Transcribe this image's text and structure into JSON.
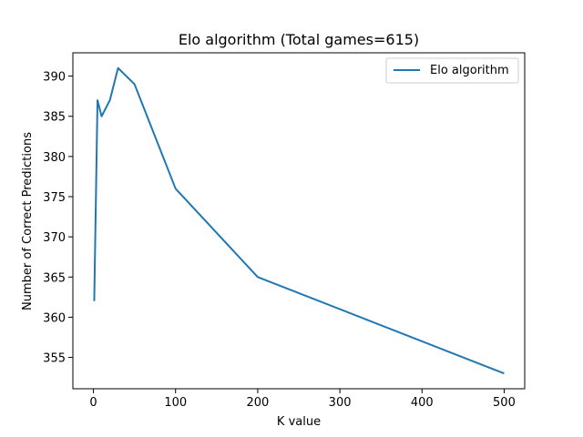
{
  "chart_data": {
    "type": "line",
    "title": "Elo algorithm (Total games=615)",
    "xlabel": "K value",
    "ylabel": "Number of Correct Predictions",
    "xlim": [
      -25,
      525
    ],
    "ylim": [
      351.1,
      392.9
    ],
    "xticks": [
      0,
      100,
      200,
      300,
      400,
      500
    ],
    "yticks": [
      355,
      360,
      365,
      370,
      375,
      380,
      385,
      390
    ],
    "grid": false,
    "legend_position": "top-right",
    "series": [
      {
        "name": "Elo algorithm",
        "color": "#1f77b4",
        "x": [
          1,
          5,
          10,
          20,
          30,
          50,
          100,
          200,
          500
        ],
        "y": [
          362,
          387,
          385,
          387,
          391,
          389,
          376,
          365,
          353
        ]
      }
    ]
  }
}
